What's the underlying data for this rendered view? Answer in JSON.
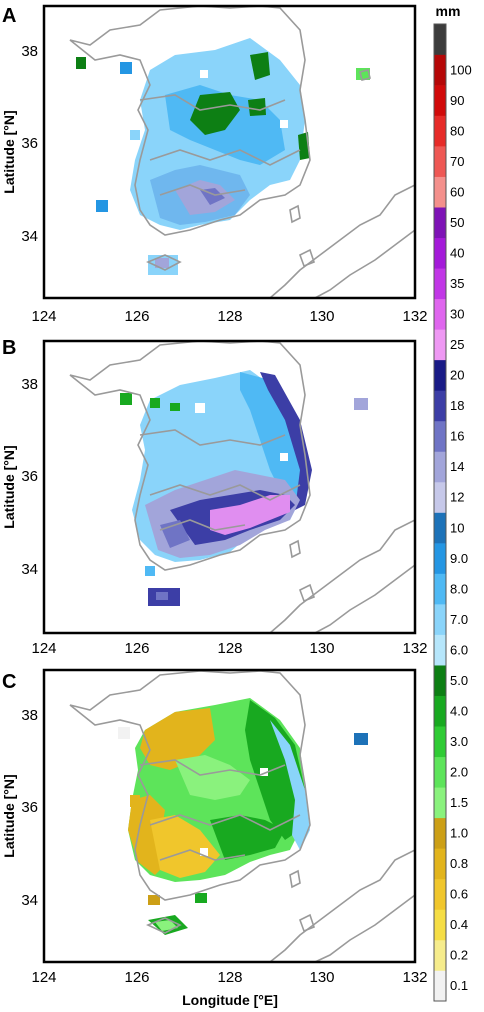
{
  "figure": {
    "panels": [
      {
        "letter": "A"
      },
      {
        "letter": "B"
      },
      {
        "letter": "C"
      }
    ],
    "x_axis": {
      "label": "Longitude [°E]",
      "ticks": [
        "124",
        "126",
        "128",
        "130",
        "132"
      ]
    },
    "y_axis": {
      "label": "Latitude [°N]",
      "ticks": [
        "34",
        "36",
        "38"
      ]
    },
    "colorbar": {
      "unit": "mm",
      "levels": [
        {
          "label": "0.1",
          "color": "#f2f2f2"
        },
        {
          "label": "0.2",
          "color": "#f6ec8c"
        },
        {
          "label": "0.4",
          "color": "#f5dd45"
        },
        {
          "label": "0.6",
          "color": "#f0c62c"
        },
        {
          "label": "0.8",
          "color": "#e2b41c"
        },
        {
          "label": "1.0",
          "color": "#cc9f16"
        },
        {
          "label": "1.5",
          "color": "#8af27d"
        },
        {
          "label": "2.0",
          "color": "#5de45a"
        },
        {
          "label": "3.0",
          "color": "#2fcb34"
        },
        {
          "label": "4.0",
          "color": "#18a920"
        },
        {
          "label": "5.0",
          "color": "#0d7f14"
        },
        {
          "label": "6.0",
          "color": "#b6e6fb"
        },
        {
          "label": "7.0",
          "color": "#8ad4fa"
        },
        {
          "label": "8.0",
          "color": "#4fb9f4"
        },
        {
          "label": "9.0",
          "color": "#2496e3"
        },
        {
          "label": "10",
          "color": "#1d72b8"
        },
        {
          "label": "12",
          "color": "#c6c8e9"
        },
        {
          "label": "14",
          "color": "#a2a5da"
        },
        {
          "label": "16",
          "color": "#6f74c5"
        },
        {
          "label": "18",
          "color": "#3c3ea6"
        },
        {
          "label": "20",
          "color": "#191b86"
        },
        {
          "label": "25",
          "color": "#ee98f3"
        },
        {
          "label": "30",
          "color": "#df66ee"
        },
        {
          "label": "35",
          "color": "#c137e6"
        },
        {
          "label": "40",
          "color": "#a41ad9"
        },
        {
          "label": "50",
          "color": "#7e13b6"
        },
        {
          "label": "60",
          "color": "#f4908c"
        },
        {
          "label": "70",
          "color": "#ee5854"
        },
        {
          "label": "80",
          "color": "#e62b28"
        },
        {
          "label": "90",
          "color": "#d10a0a"
        },
        {
          "label": "100",
          "color": "#b50707"
        },
        {
          "label": "",
          "color": "#3c3c3c"
        }
      ]
    }
  }
}
